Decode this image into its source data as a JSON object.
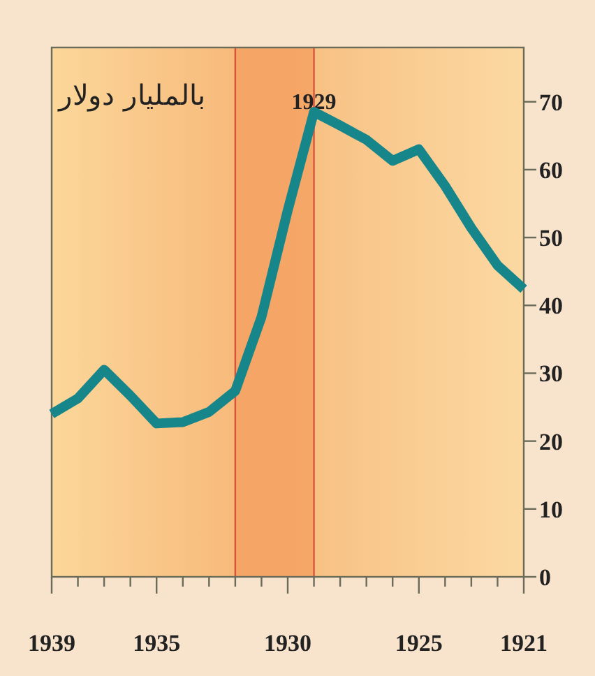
{
  "chart_data": {
    "type": "line",
    "title": "بالمليار دولار",
    "x": [
      1939,
      1938,
      1937,
      1936,
      1935,
      1934,
      1933,
      1932,
      1931,
      1930,
      1929,
      1928,
      1927,
      1926,
      1925,
      1924,
      1923,
      1922,
      1921
    ],
    "series": [
      {
        "color": "#17868a",
        "values": [
          24,
          26.3,
          30.5,
          26.7,
          22.6,
          22.8,
          24.3,
          27.4,
          38.3,
          54,
          68.5,
          66.5,
          64.4,
          61.3,
          63,
          57.6,
          51.4,
          45.9,
          42.4
        ]
      }
    ],
    "xlim": [
      1939,
      1921
    ],
    "ylim": [
      0,
      78
    ],
    "xticks": [
      1939,
      {
        "value": 1938,
        "label": null
      },
      {
        "value": 1937,
        "label": null
      },
      {
        "value": 1936,
        "label": null
      },
      1935,
      {
        "value": 1934,
        "label": null
      },
      {
        "value": 1933,
        "label": null
      },
      {
        "value": 1932,
        "label": null
      },
      {
        "value": 1931,
        "label": null
      },
      1930,
      {
        "value": 1929,
        "label": null
      },
      {
        "value": 1928,
        "label": null
      },
      {
        "value": 1927,
        "label": null
      },
      {
        "value": 1926,
        "label": null
      },
      1925,
      {
        "value": 1924,
        "label": null
      },
      {
        "value": 1923,
        "label": null
      },
      {
        "value": 1922,
        "label": null
      },
      1921
    ],
    "yticks": [
      0,
      10,
      20,
      30,
      40,
      50,
      60,
      70
    ],
    "ref_lines": [
      {
        "axis": "x",
        "value": 1932,
        "label": null,
        "color": "#d9533a"
      },
      {
        "axis": "x",
        "value": 1929,
        "label": "1929",
        "color": "#d9533a"
      }
    ],
    "bands": [
      {
        "axis": "x",
        "from": 1932,
        "to": 1929,
        "label": null,
        "color": "#f4a060"
      }
    ],
    "grid": false,
    "marker": "none",
    "line_style": "solid"
  }
}
